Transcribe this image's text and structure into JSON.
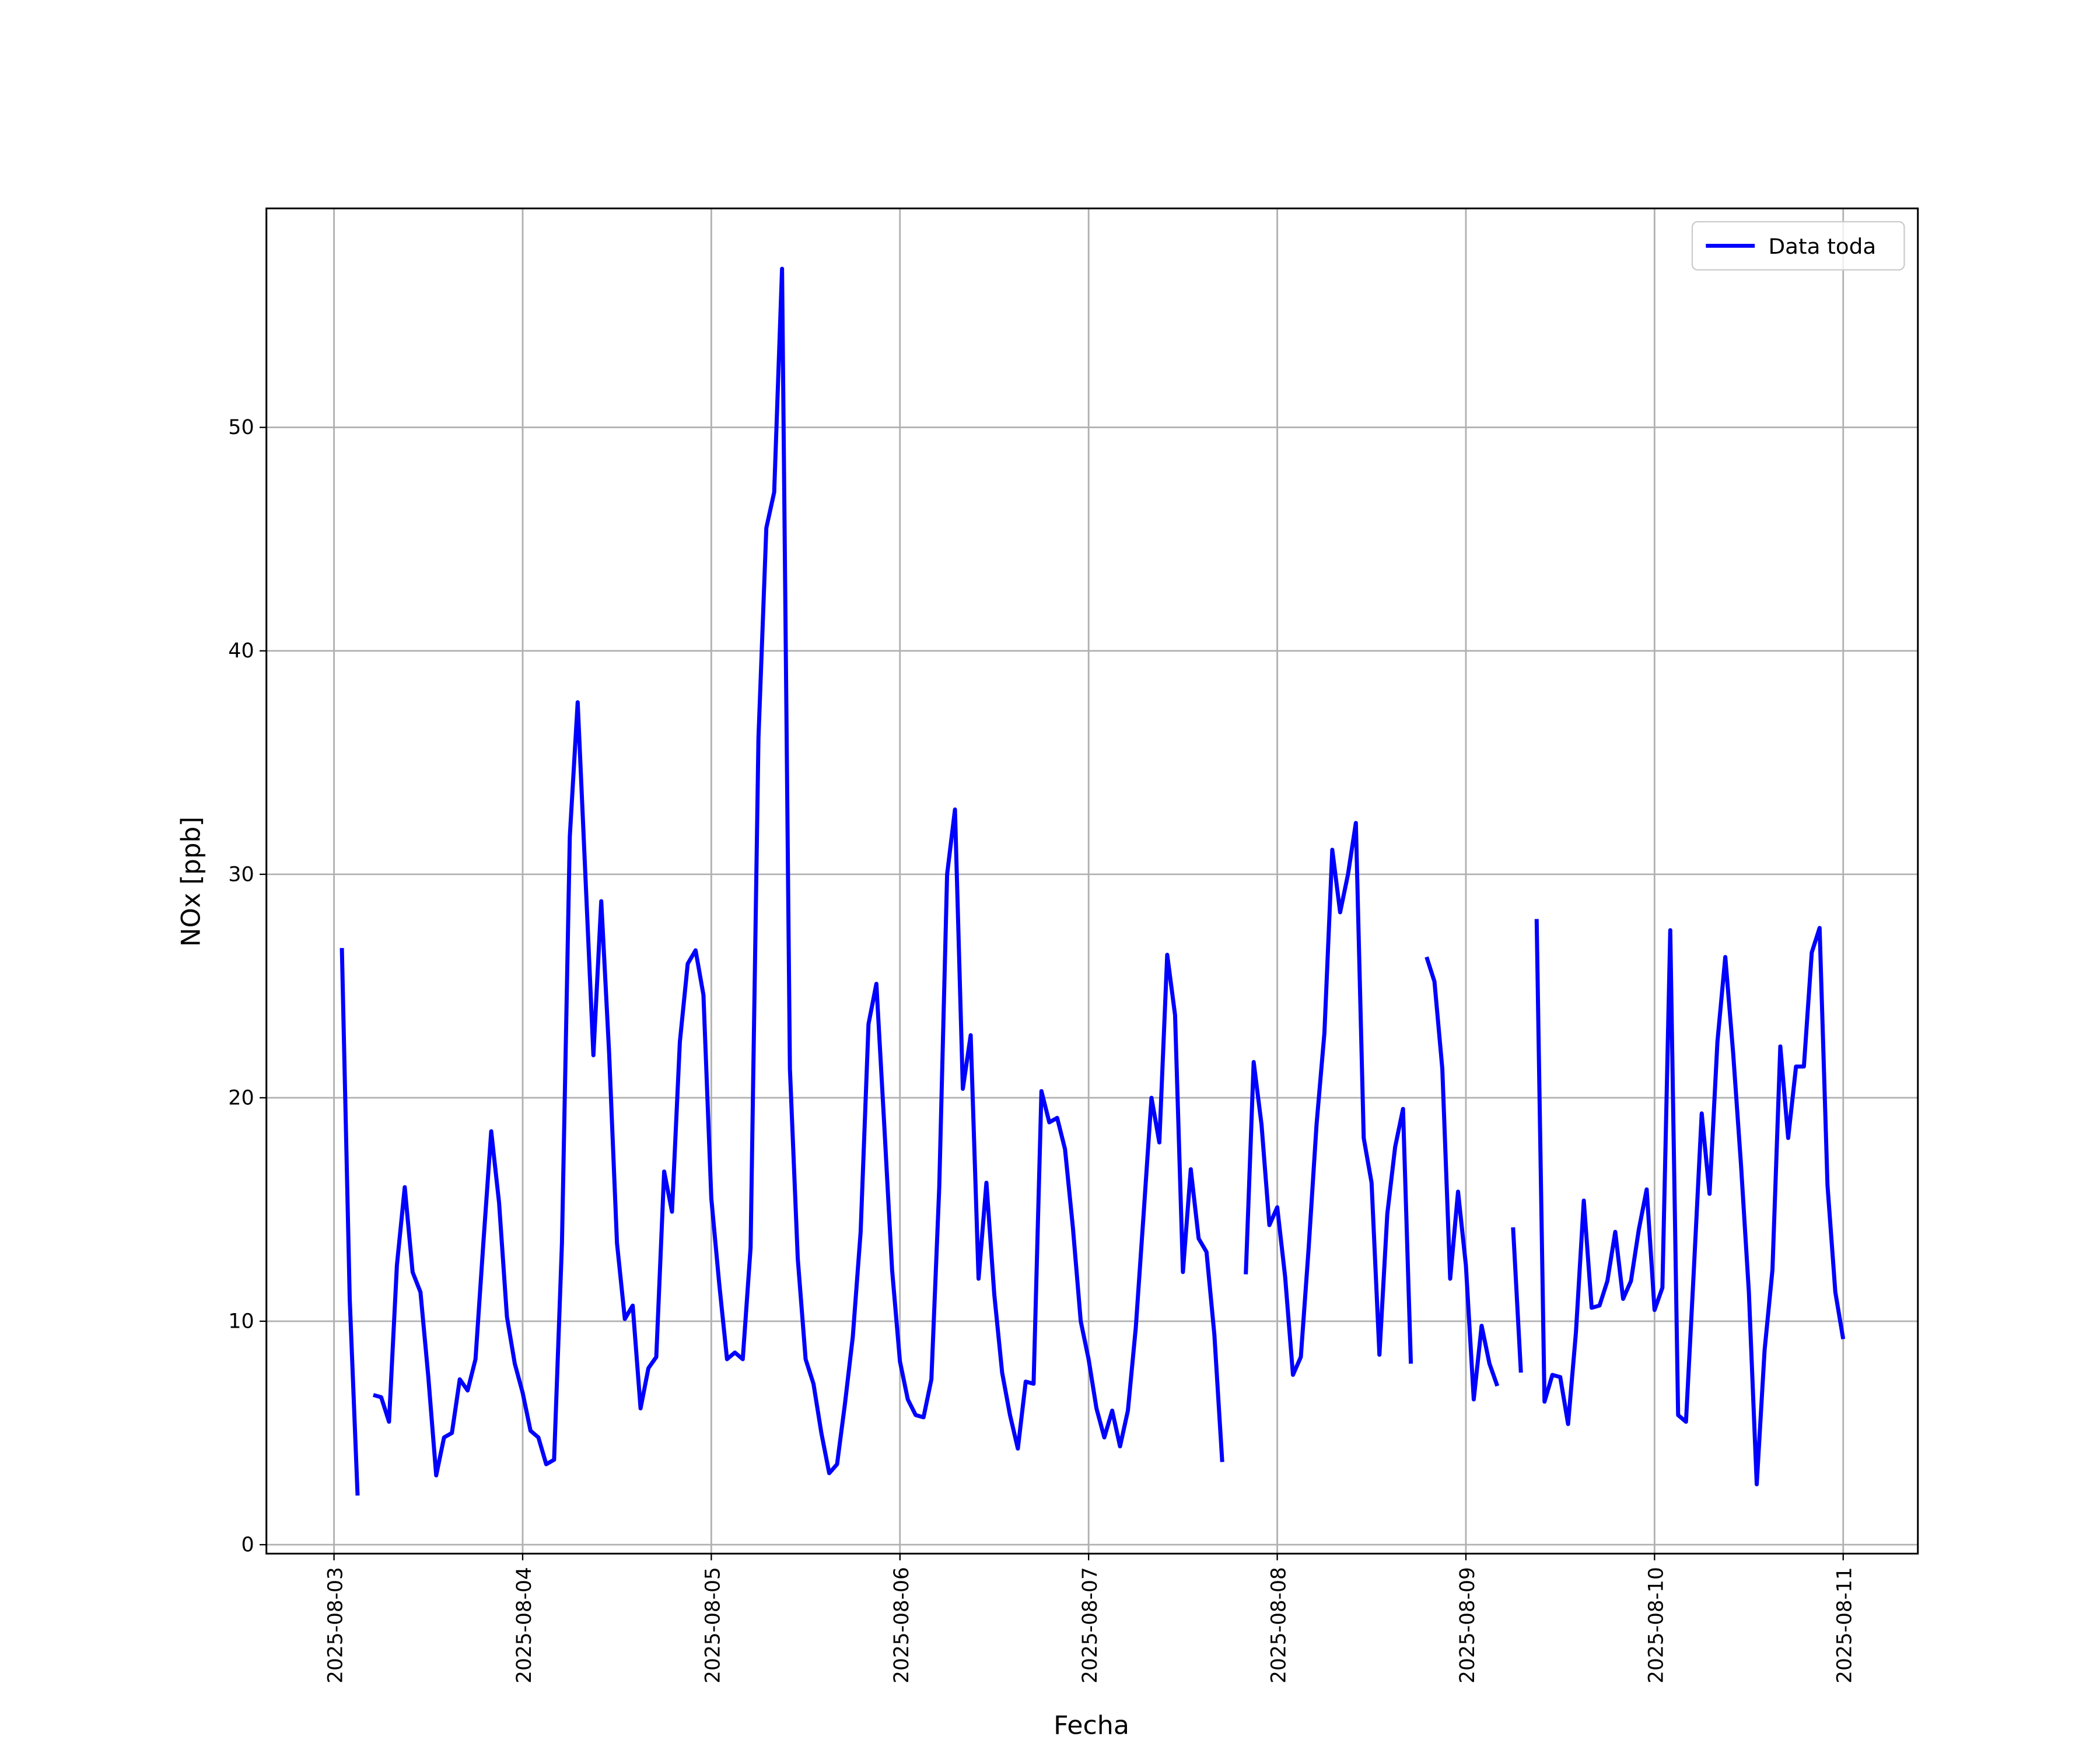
{
  "chart_data": {
    "type": "line",
    "xlabel": "Fecha",
    "ylabel": "NOx [ppb]",
    "x": [
      1,
      2,
      3,
      4,
      5,
      6,
      7,
      8,
      9,
      10,
      11,
      12,
      13,
      14,
      15,
      16,
      17,
      18,
      19,
      20,
      21,
      22,
      23,
      24,
      25,
      26,
      27,
      28,
      29,
      30,
      31,
      32,
      33,
      34,
      35,
      36,
      37,
      38,
      39,
      40,
      41,
      42,
      43,
      44,
      45,
      46,
      47,
      48,
      49,
      50,
      51,
      52,
      53,
      54,
      55,
      56,
      57,
      58,
      59,
      60,
      61,
      62,
      63,
      64,
      65,
      66,
      67,
      68,
      69,
      70,
      71,
      72,
      73,
      74,
      75,
      76,
      77,
      78,
      79,
      80,
      81,
      82,
      83,
      84,
      85,
      86,
      87,
      88,
      89,
      90,
      91,
      92,
      93,
      94,
      95,
      96,
      97,
      98,
      99,
      100,
      101,
      102,
      103,
      104,
      105,
      106,
      107,
      108,
      109,
      110,
      111,
      112,
      113,
      114,
      115,
      116,
      117,
      118,
      119,
      120,
      121,
      122,
      123,
      124,
      125,
      126,
      127,
      128,
      129,
      130,
      131,
      132,
      133,
      134,
      135,
      136,
      137,
      138,
      139,
      140,
      141,
      142,
      143,
      144,
      145,
      146,
      147,
      148,
      149,
      150,
      151,
      152,
      153,
      154,
      155,
      156,
      157,
      158,
      159,
      160,
      161,
      162,
      163,
      164,
      165,
      166,
      167,
      168,
      169,
      170,
      171,
      172,
      173,
      174,
      175,
      176,
      177,
      178,
      179,
      180,
      181,
      182,
      183,
      184,
      185,
      186,
      187,
      188,
      189,
      190,
      191,
      192
    ],
    "series": [
      {
        "name": "Data toda",
        "color": "#0000ff",
        "values": [
          26.7,
          11,
          2.2,
          null,
          6.7,
          6.6,
          5.5,
          12.5,
          16,
          12.2,
          11.3,
          7.5,
          3.1,
          4.8,
          5,
          7.4,
          6.9,
          8.3,
          13.5,
          18.5,
          15.3,
          10.2,
          8.1,
          6.8,
          5.1,
          4.8,
          3.6,
          3.8,
          13.5,
          31.7,
          37.7,
          29.8,
          21.9,
          28.8,
          22,
          13.5,
          10.1,
          10.7,
          6.1,
          7.9,
          8.4,
          16.7,
          14.9,
          22.5,
          26,
          26.6,
          24.6,
          15.5,
          11.7,
          8.3,
          8.6,
          8.3,
          13.3,
          36.1,
          45.5,
          47.1,
          57.1,
          21.3,
          12.8,
          8.3,
          7.2,
          5,
          3.2,
          3.6,
          6.3,
          9.3,
          14,
          23.3,
          25.1,
          18.8,
          12.3,
          8.2,
          6.5,
          5.8,
          5.7,
          7.4,
          16,
          30,
          32.9,
          20.4,
          22.8,
          11.9,
          16.2,
          11.2,
          7.7,
          5.8,
          4.3,
          7.3,
          7.2,
          20.3,
          18.9,
          19.1,
          17.7,
          14.2,
          10,
          8.3,
          6.1,
          4.8,
          6,
          4.4,
          6,
          9.7,
          14.8,
          20,
          18,
          26.4,
          23.7,
          12.2,
          16.8,
          13.7,
          13.1,
          9.4,
          3.7,
          null,
          null,
          12.1,
          21.6,
          18.8,
          14.3,
          15.1,
          12,
          7.6,
          8.4,
          13.3,
          18.8,
          22.9,
          31.1,
          28.3,
          30,
          32.3,
          18.2,
          16.2,
          8.5,
          14.8,
          17.8,
          19.5,
          8.1,
          null,
          26.3,
          25.2,
          21.3,
          11.9,
          15.8,
          12.5,
          6.5,
          9.8,
          8.1,
          7.1,
          null,
          14.2,
          7.7,
          null,
          28,
          6.4,
          7.6,
          7.5,
          5.4,
          9.5,
          15.4,
          10.6,
          10.7,
          11.8,
          14,
          11,
          11.8,
          14.1,
          15.9,
          10.5,
          11.5,
          27.5,
          5.8,
          5.5,
          12.3,
          19.3,
          15.7,
          22.5,
          26.3,
          22,
          17,
          11.3,
          2.7,
          8.7,
          12.3,
          22.3,
          18.2,
          21.4,
          21.4,
          26.5,
          27.6,
          16.1,
          11.3,
          9.2
        ]
      }
    ],
    "xlim": [
      -8.6,
      201.5
    ],
    "xticks": [
      {
        "value": 0,
        "label": "2025-08-03"
      },
      {
        "value": 24,
        "label": "2025-08-04"
      },
      {
        "value": 48,
        "label": "2025-08-05"
      },
      {
        "value": 72,
        "label": "2025-08-06"
      },
      {
        "value": 96,
        "label": "2025-08-07"
      },
      {
        "value": 120,
        "label": "2025-08-08"
      },
      {
        "value": 144,
        "label": "2025-08-09"
      },
      {
        "value": 168,
        "label": "2025-08-10"
      },
      {
        "value": 192,
        "label": "2025-08-11"
      }
    ],
    "ylim": [
      -0.4,
      59.8
    ],
    "yticks": [
      0,
      10,
      20,
      30,
      40,
      50
    ],
    "grid": true,
    "legend": "upper right"
  }
}
